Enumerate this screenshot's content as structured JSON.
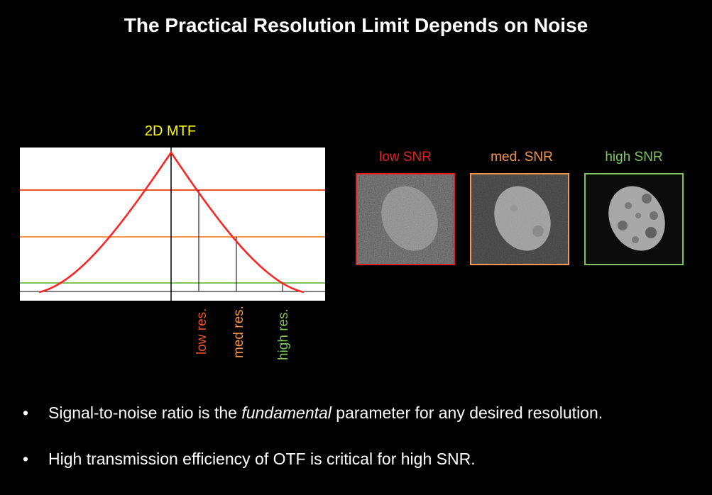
{
  "title": "The Practical Resolution Limit Depends on Noise",
  "mtf": {
    "label": "2D MTF",
    "line_color": "#ff2020",
    "levels": [
      {
        "name": "low",
        "color": "#e8542a",
        "label": "low res."
      },
      {
        "name": "med",
        "color": "#f7964a",
        "label": "med res."
      },
      {
        "name": "high",
        "color": "#7fc45a",
        "label": "high res."
      }
    ]
  },
  "snr_panels": [
    {
      "label": "low SNR",
      "color": "#e02020"
    },
    {
      "label": "med. SNR",
      "color": "#f7964a"
    },
    {
      "label": "high SNR",
      "color": "#7fc45a"
    }
  ],
  "bullets": {
    "symbol": "•",
    "b1_before": "Signal-to-noise ratio is the ",
    "b1_em": "fundamental",
    "b1_after": " parameter for any desired resolution.",
    "b2": "High transmission efficiency of OTF is critical for high SNR."
  }
}
